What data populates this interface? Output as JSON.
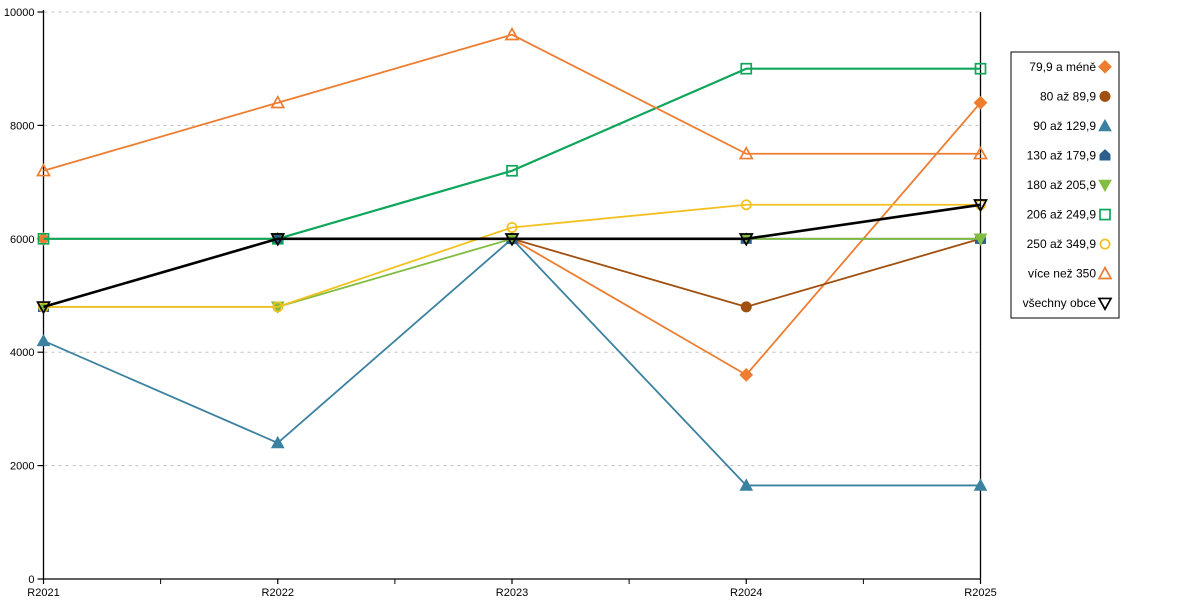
{
  "chart_data": {
    "type": "line",
    "title": "",
    "xlabel": "",
    "ylabel": "",
    "categories": [
      "R2021",
      "R2022",
      "R2023",
      "R2024",
      "R2025"
    ],
    "series": [
      {
        "name": "79,9 a méně",
        "values": [
          6000,
          6000,
          6000,
          3600,
          8400
        ],
        "color": "#ED7D31",
        "marker": "diamond",
        "fill": "solid",
        "line_width": 1.8
      },
      {
        "name": "80 až 89,9",
        "values": [
          4800,
          6000,
          6000,
          4800,
          6000
        ],
        "color": "#A0500F",
        "marker": "circle",
        "fill": "solid",
        "line_width": 1.8
      },
      {
        "name": "90 až 129,9",
        "values": [
          4200,
          2400,
          6000,
          1650,
          1650
        ],
        "color": "#3B82A0",
        "marker": "triangle-up",
        "fill": "solid",
        "line_width": 1.8
      },
      {
        "name": "130 až 179,9",
        "values": [
          4800,
          6000,
          6000,
          6000,
          6000
        ],
        "color": "#2B5F8C",
        "marker": "pentagon",
        "fill": "solid",
        "line_width": 1.8
      },
      {
        "name": "180 až 205,9",
        "values": [
          4800,
          4800,
          6000,
          6000,
          6000
        ],
        "color": "#82BC41",
        "marker": "triangle-down",
        "fill": "solid",
        "line_width": 1.8
      },
      {
        "name": "206 až 249,9",
        "values": [
          6000,
          6000,
          7200,
          9000,
          9000
        ],
        "color": "#0EA65A",
        "marker": "square",
        "fill": "hollow",
        "line_width": 2.2
      },
      {
        "name": "250 až 349,9",
        "values": [
          4800,
          4800,
          6200,
          6600,
          6600
        ],
        "color": "#F2C11E",
        "marker": "circle",
        "fill": "hollow",
        "line_width": 1.8
      },
      {
        "name": "více než 350",
        "values": [
          7200,
          8400,
          9600,
          7500,
          7500
        ],
        "color": "#ED7D31",
        "marker": "triangle-up",
        "fill": "hollow",
        "line_width": 1.8
      },
      {
        "name": "všechny obce",
        "values": [
          4800,
          6000,
          6000,
          6000,
          6600
        ],
        "color": "#000000",
        "marker": "triangle-down",
        "fill": "hollow",
        "line_width": 2.6
      }
    ],
    "ylim": [
      0,
      10000
    ],
    "y_ticks": [
      0,
      2000,
      4000,
      6000,
      8000,
      10000
    ],
    "y_tick_labels": [
      "0",
      "2000",
      "4000",
      "6000",
      "8000",
      "10000"
    ],
    "grid": "horizontal-dashed",
    "legend_position": "right-outside"
  },
  "colors": {
    "background": "#FFFFFF",
    "grid": "#C0C0C0",
    "axis": "#000000",
    "text": "#000000",
    "legend_border": "#000000"
  }
}
